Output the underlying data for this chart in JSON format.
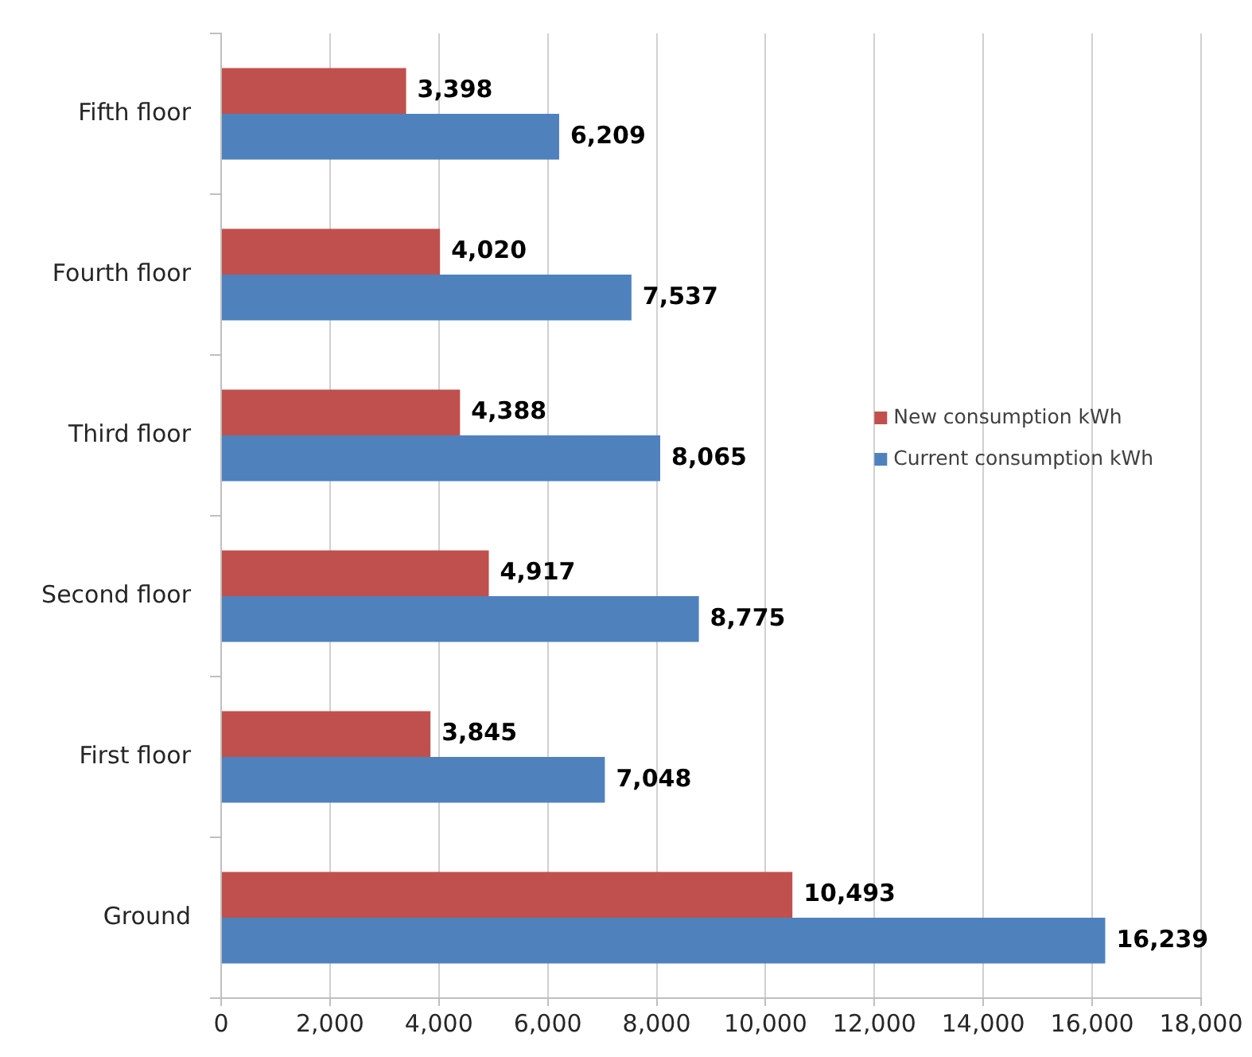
{
  "chart_data": {
    "type": "bar",
    "orientation": "horizontal",
    "categories": [
      "Fifth floor",
      "Fourth floor",
      "Third floor",
      "Second floor",
      "First floor",
      "Ground"
    ],
    "series": [
      {
        "name": "New consumption kWh",
        "color": "#c0504d",
        "values": [
          3398,
          4020,
          4388,
          4917,
          3845,
          10493
        ],
        "value_labels": [
          "3,398",
          "4,020",
          "4,388",
          "4,917",
          "3,845",
          "10,493"
        ]
      },
      {
        "name": "Current consumption kWh",
        "color": "#4f81bd",
        "values": [
          6209,
          7537,
          8065,
          8775,
          7048,
          16239
        ],
        "value_labels": [
          "6,209",
          "7,537",
          "8,065",
          "8,775",
          "7,048",
          "16,239"
        ]
      }
    ],
    "xlim": [
      0,
      18000
    ],
    "xticks": [
      0,
      {
        "value": 2000,
        "label": "2,000"
      },
      {
        "value": 4000,
        "label": "4,000"
      },
      {
        "value": 6000,
        "label": "6,000"
      },
      {
        "value": 8000,
        "label": "8,000"
      },
      {
        "value": 10000,
        "label": "10,000"
      },
      {
        "value": 12000,
        "label": "12,000"
      },
      {
        "value": 14000,
        "label": "14,000"
      },
      {
        "value": 16000,
        "label": "16,000"
      },
      {
        "value": 18000,
        "label": "18,000"
      }
    ],
    "grid": "x",
    "legend": "right"
  }
}
